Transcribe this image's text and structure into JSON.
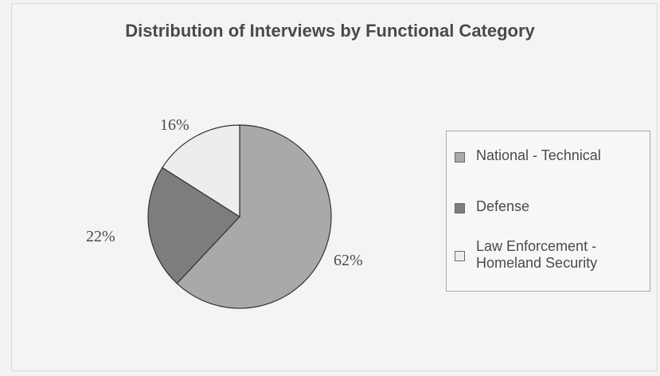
{
  "chart_data": {
    "type": "pie",
    "title": "Distribution of Interviews by Functional Category",
    "series": [
      {
        "name": "National - Technical",
        "value": 62,
        "label": "62%",
        "color": "#a9a9a9"
      },
      {
        "name": "Defense",
        "value": 22,
        "label": "22%",
        "color": "#7d7d7d"
      },
      {
        "name": "Law Enforcement -\nHomeland Security",
        "value": 16,
        "label": "16%",
        "color": "#ededed"
      }
    ],
    "legend": {
      "position": "right"
    }
  },
  "colors": {
    "background": "#f4f4f4",
    "text": "#4a4a4a",
    "pie_outline": "#333333"
  }
}
